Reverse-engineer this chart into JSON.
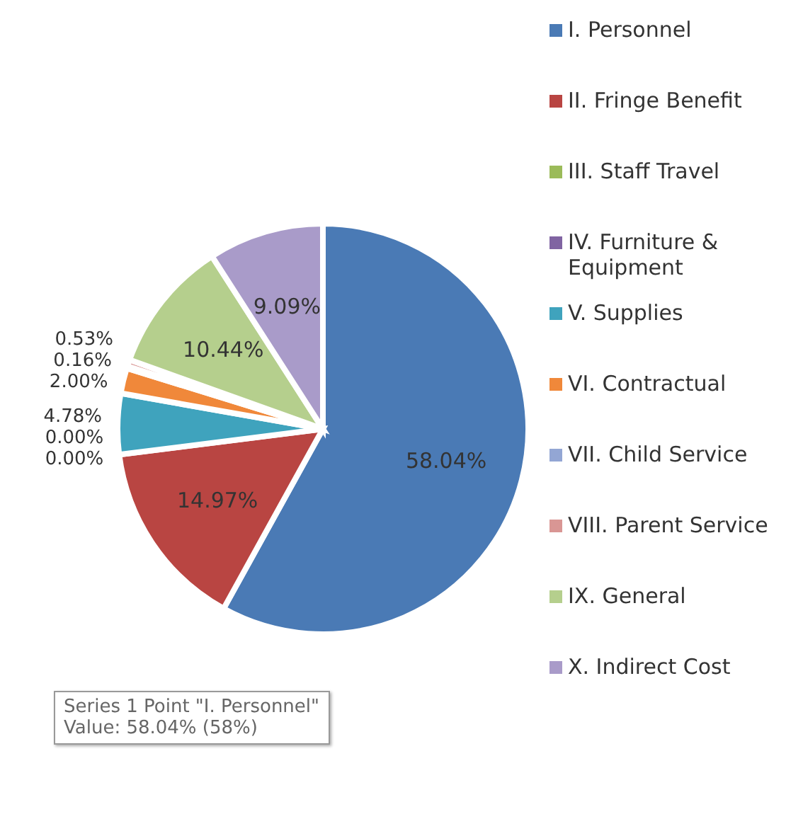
{
  "chart_data": {
    "type": "pie",
    "categories": [
      "I. Personnel",
      "II. Fringe Benefit",
      "III. Staff Travel",
      "IV. Furniture & Equipment",
      "V. Supplies",
      "VI. Contractual",
      "VII. Child Service",
      "VIII. Parent Service",
      "IX. General",
      "X. Indirect Cost"
    ],
    "values": [
      58.04,
      14.97,
      0.0,
      0.0,
      4.78,
      2.0,
      0.16,
      0.53,
      10.44,
      9.09
    ],
    "value_labels": [
      "58.04%",
      "14.97%",
      "0.00%",
      "0.00%",
      "4.78%",
      "2.00%",
      "0.16%",
      "0.53%",
      "10.44%",
      "9.09%"
    ],
    "colors": [
      "#4a7ab5",
      "#b94542",
      "#9bbb59",
      "#8064a2",
      "#3fa3bd",
      "#f0883a",
      "#93a6d4",
      "#d99694",
      "#b5cf8d",
      "#a99bc9"
    ],
    "legend": "right",
    "annotations": [
      "Series 1 Point \"I. Personnel\"",
      "Value: 58.04% (58%)"
    ]
  }
}
